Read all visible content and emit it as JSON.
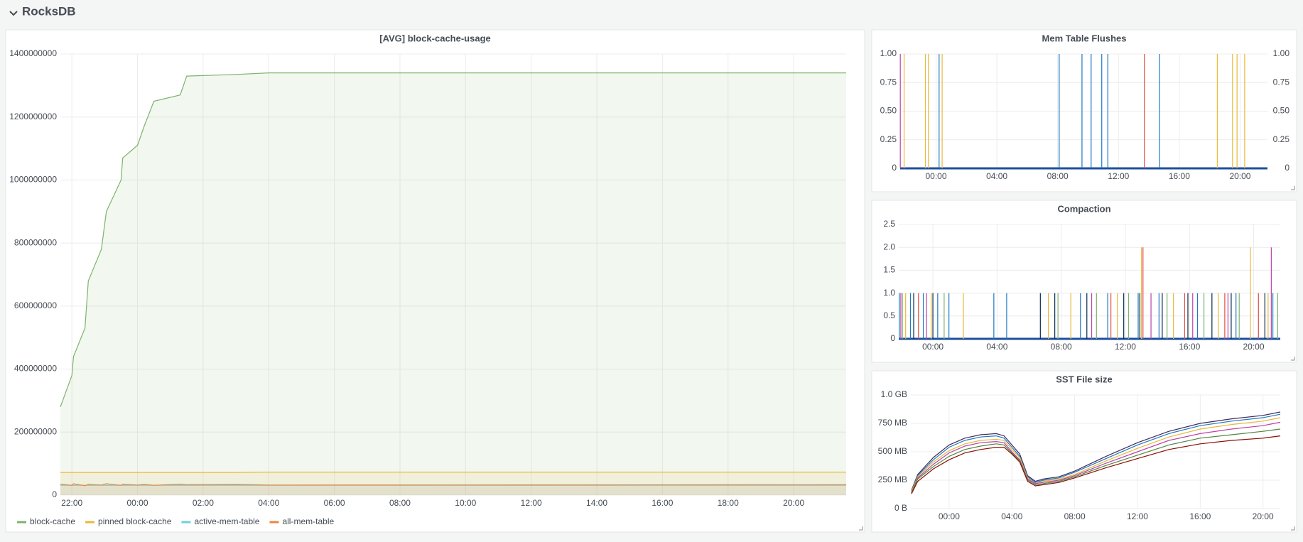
{
  "header": {
    "title": "RocksDB"
  },
  "chart_data": [
    {
      "type": "line",
      "title": "[AVG] block-cache-usage",
      "fill": true,
      "grid": true,
      "legend": "bottom-left",
      "x": [
        21.65,
        22,
        22.05,
        22.4,
        22.5,
        22.9,
        23.05,
        23.5,
        23.55,
        24,
        24.2,
        24.5,
        25.3,
        25.5,
        27,
        28,
        45.6
      ],
      "xlim": [
        21.65,
        45.6
      ],
      "xticks": [
        {
          "value": 22,
          "label": "22:00"
        },
        {
          "value": 24,
          "label": "00:00"
        },
        {
          "value": 26,
          "label": "02:00"
        },
        {
          "value": 28,
          "label": "04:00"
        },
        {
          "value": 30,
          "label": "06:00"
        },
        {
          "value": 32,
          "label": "08:00"
        },
        {
          "value": 34,
          "label": "10:00"
        },
        {
          "value": 36,
          "label": "12:00"
        },
        {
          "value": 38,
          "label": "14:00"
        },
        {
          "value": 40,
          "label": "16:00"
        },
        {
          "value": 42,
          "label": "18:00"
        },
        {
          "value": 44,
          "label": "20:00"
        }
      ],
      "ylim": [
        0,
        1400000000
      ],
      "yticks": [
        0,
        200000000,
        400000000,
        600000000,
        800000000,
        1000000000,
        1200000000,
        1400000000
      ],
      "series": [
        {
          "name": "block-cache",
          "color": "#7eb26d",
          "values": [
            280000000,
            380000000,
            440000000,
            530000000,
            680000000,
            780000000,
            900000000,
            1000000000,
            1070000000,
            1110000000,
            1170000000,
            1250000000,
            1270000000,
            1330000000,
            1335000000,
            1340000000,
            1340000000
          ]
        },
        {
          "name": "pinned block-cache",
          "color": "#eab839",
          "values": [
            72000000,
            72000000,
            72000000,
            72000000,
            72000000,
            72000000,
            72000000,
            72000000,
            72000000,
            72000000,
            72000000,
            72000000,
            72000000,
            72000000,
            72000000,
            73000000,
            73000000
          ]
        },
        {
          "name": "active-mem-table",
          "color": "#6ed0e0",
          "values": [
            31000000,
            31000000,
            31000000,
            31000000,
            31000000,
            31000000,
            31000000,
            31000000,
            31000000,
            31000000,
            31000000,
            31000000,
            31000000,
            31000000,
            31000000,
            31000000,
            31000000
          ]
        },
        {
          "name": "all-mem-table",
          "color": "#ef843c",
          "values": [
            35000000,
            31000000,
            36000000,
            30000000,
            34000000,
            32000000,
            36000000,
            31000000,
            35000000,
            32000000,
            34000000,
            31000000,
            35000000,
            33000000,
            34000000,
            32000000,
            33000000
          ]
        }
      ]
    },
    {
      "type": "impulse",
      "title": "Mem Table Flushes",
      "grid": true,
      "xlim": [
        21.64,
        45.8
      ],
      "xticks": [
        {
          "value": 24,
          "label": "00:00"
        },
        {
          "value": 28,
          "label": "04:00"
        },
        {
          "value": 32,
          "label": "08:00"
        },
        {
          "value": 36,
          "label": "12:00"
        },
        {
          "value": 40,
          "label": "16:00"
        },
        {
          "value": 44,
          "label": "20:00"
        }
      ],
      "ylim": [
        0,
        1
      ],
      "yticks": [
        0,
        {
          "value": 0.25,
          "label": "0.25"
        },
        {
          "value": 0.5,
          "label": "0.50"
        },
        {
          "value": 0.75,
          "label": "0.75"
        },
        {
          "value": 1,
          "label": "1.00"
        }
      ],
      "y2lim": [
        0,
        1
      ],
      "y2ticks": [
        0,
        {
          "value": 0.25,
          "label": "0.25"
        },
        {
          "value": 0.5,
          "label": "0.50"
        },
        {
          "value": 0.75,
          "label": "0.75"
        },
        {
          "value": 1,
          "label": "1.00"
        }
      ],
      "series": [
        {
          "color": "#ba43a9",
          "x": [
            21.65
          ],
          "values": [
            1
          ]
        },
        {
          "color": "#eab839",
          "x": [
            21.9,
            23.3,
            23.5,
            24.4,
            42.5,
            43.5,
            43.8,
            44.3
          ],
          "values": [
            1,
            1,
            1,
            1,
            1,
            1,
            1,
            1
          ]
        },
        {
          "color": "#1f78c1",
          "x": [
            24.2,
            32.1,
            33.6,
            34.2,
            34.9,
            35.3,
            38.7
          ],
          "values": [
            1,
            1,
            1,
            1,
            1,
            1,
            1
          ]
        },
        {
          "color": "#e24d42",
          "x": [
            37.7
          ],
          "values": [
            1
          ]
        }
      ]
    },
    {
      "type": "impulse",
      "title": "Compaction",
      "grid": true,
      "xlim": [
        21.87,
        45.66
      ],
      "xticks": [
        {
          "value": 24,
          "label": "00:00"
        },
        {
          "value": 28,
          "label": "04:00"
        },
        {
          "value": 32,
          "label": "08:00"
        },
        {
          "value": 36,
          "label": "12:00"
        },
        {
          "value": 40,
          "label": "16:00"
        },
        {
          "value": 44,
          "label": "20:00"
        }
      ],
      "ylim": [
        0,
        2.5
      ],
      "yticks": [
        0,
        0.5,
        {
          "value": 1,
          "label": "1.0"
        },
        1.5,
        {
          "value": 2,
          "label": "2.0"
        },
        2.5
      ],
      "series": [
        {
          "color": "#1f78c1",
          "x": [
            21.9,
            22.6,
            23.4,
            24.3,
            25.0,
            27.8,
            28.6,
            33.2,
            34.9,
            36.8,
            38.1,
            40.5,
            42.9,
            45.2
          ],
          "values": [
            1,
            1,
            1,
            1,
            1,
            1,
            1,
            1,
            1,
            1,
            1,
            1,
            1,
            1
          ]
        },
        {
          "color": "#eab839",
          "x": [
            22.3,
            23.9,
            25.9,
            31.2,
            32.6,
            35.5,
            37.0,
            39.0,
            41.8,
            43.8,
            44.9
          ],
          "values": [
            1,
            1,
            1,
            1,
            1,
            1,
            2,
            1,
            1,
            2,
            1
          ]
        },
        {
          "color": "#7eb26d",
          "x": [
            22.1,
            24.7,
            31.8,
            34.2,
            36.2,
            38.6,
            40.9,
            43.1,
            45.5
          ],
          "values": [
            1,
            1,
            1,
            1,
            1,
            1,
            1,
            1,
            1
          ]
        },
        {
          "color": "#e24d42",
          "x": [
            23.1,
            35.1,
            37.1,
            39.7,
            42.2,
            44.3
          ],
          "values": [
            1,
            1,
            2,
            1,
            1,
            1
          ]
        },
        {
          "color": "#052b51",
          "x": [
            22.8,
            24.0,
            30.7,
            31.6,
            33.6,
            35.9,
            36.9,
            38.3,
            39.9,
            41.4,
            42.6,
            44.7
          ],
          "values": [
            1,
            1,
            1,
            1,
            1,
            1,
            1,
            1,
            1,
            1,
            1,
            1
          ]
        },
        {
          "color": "#ba43a9",
          "x": [
            22.0,
            23.6,
            33.9,
            37.6,
            40.2,
            42.4,
            45.1
          ],
          "values": [
            1,
            1,
            1,
            1,
            1,
            1,
            2
          ]
        }
      ]
    },
    {
      "type": "line",
      "title": "SST File size",
      "grid": true,
      "x": [
        21.6,
        22,
        23,
        24,
        25,
        26,
        27,
        27.5,
        28,
        28.5,
        29,
        29.5,
        30,
        31,
        32,
        34,
        36,
        38,
        40,
        42,
        44,
        45.1
      ],
      "xlim": [
        21.56,
        45.1
      ],
      "xticks": [
        {
          "value": 24,
          "label": "00:00"
        },
        {
          "value": 28,
          "label": "04:00"
        },
        {
          "value": 32,
          "label": "08:00"
        },
        {
          "value": 36,
          "label": "12:00"
        },
        {
          "value": 40,
          "label": "16:00"
        },
        {
          "value": 44,
          "label": "20:00"
        }
      ],
      "ylim": [
        0,
        1000
      ],
      "yticks": [
        {
          "value": 0,
          "label": "0 B"
        },
        {
          "value": 250,
          "label": "250 MB"
        },
        {
          "value": 500,
          "label": "500 MB"
        },
        {
          "value": 750,
          "label": "750 MB"
        },
        {
          "value": 1000,
          "label": "1.0 GB"
        }
      ],
      "series": [
        {
          "color": "#3f2b5b",
          "values": [
            160,
            300,
            450,
            560,
            620,
            650,
            660,
            640,
            560,
            480,
            290,
            240,
            260,
            280,
            330,
            460,
            580,
            680,
            750,
            790,
            820,
            850
          ]
        },
        {
          "color": "#1f78c1",
          "values": [
            150,
            290,
            430,
            540,
            600,
            630,
            640,
            620,
            540,
            460,
            280,
            230,
            250,
            270,
            320,
            440,
            560,
            660,
            730,
            770,
            800,
            830
          ]
        },
        {
          "color": "#eab839",
          "values": [
            150,
            280,
            410,
            510,
            570,
            600,
            610,
            600,
            520,
            450,
            270,
            220,
            240,
            260,
            300,
            420,
            530,
            630,
            700,
            740,
            770,
            800
          ]
        },
        {
          "color": "#ba43a9",
          "values": [
            140,
            270,
            390,
            490,
            550,
            580,
            590,
            580,
            500,
            430,
            260,
            220,
            230,
            250,
            290,
            400,
            500,
            600,
            660,
            700,
            730,
            760
          ]
        },
        {
          "color": "#508642",
          "values": [
            140,
            260,
            370,
            460,
            520,
            550,
            570,
            560,
            490,
            420,
            250,
            210,
            220,
            240,
            280,
            380,
            470,
            560,
            620,
            650,
            680,
            700
          ]
        },
        {
          "color": "#890f02",
          "values": [
            130,
            240,
            350,
            430,
            490,
            520,
            540,
            540,
            480,
            410,
            240,
            200,
            210,
            230,
            270,
            360,
            440,
            520,
            570,
            600,
            620,
            640
          ]
        }
      ]
    }
  ]
}
